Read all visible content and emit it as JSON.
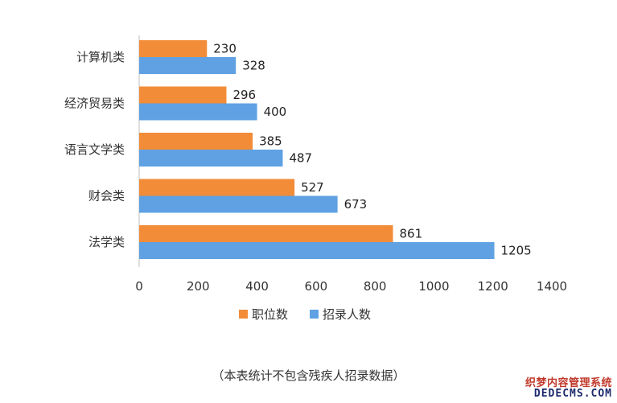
{
  "chart_data": {
    "type": "bar",
    "orientation": "horizontal",
    "categories": [
      "计算机类",
      "经济贸易类",
      "语言文学类",
      "财会类",
      "法学类"
    ],
    "series": [
      {
        "name": "职位数",
        "color": "#f28c38",
        "values": [
          230,
          296,
          385,
          527,
          861
        ]
      },
      {
        "name": "招录人数",
        "color": "#5fa1e3",
        "values": [
          328,
          400,
          487,
          673,
          1205
        ]
      }
    ],
    "xlim": [
      0,
      1400
    ],
    "xticks": [
      "0",
      "200",
      "400",
      "600",
      "800",
      "1000",
      "1200",
      "1400"
    ],
    "legend_position": "bottom",
    "grid": false
  },
  "footnote": "（本表统计不包含残疾人招录数据）",
  "watermark": {
    "cn": "织梦内容管理系统",
    "en": "DEDECMS.COM"
  }
}
